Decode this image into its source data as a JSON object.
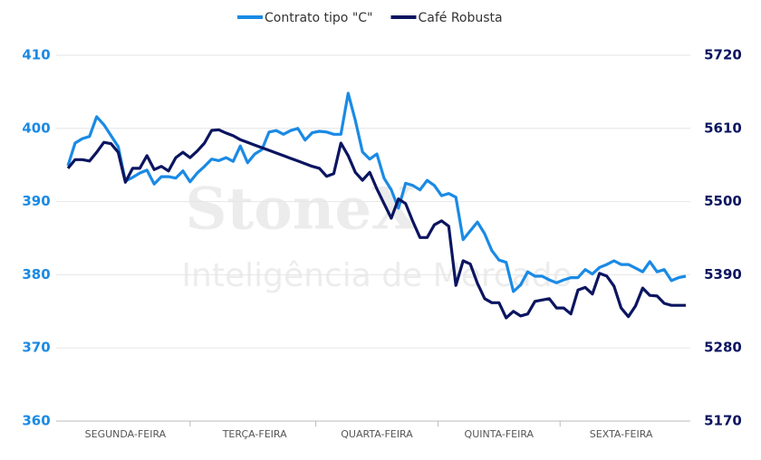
{
  "chart_data": {
    "type": "line",
    "watermark": [
      "StoneX",
      "Inteligência de Mercado"
    ],
    "categories": [
      null,
      null,
      null,
      null,
      null,
      null,
      null,
      null,
      "SEGUNDA-FEIRA",
      null,
      null,
      null,
      null,
      null,
      null,
      null,
      null,
      null,
      null,
      null,
      null,
      null,
      null,
      null,
      null,
      null,
      "TERÇA-FEIRA",
      null,
      null,
      null,
      null,
      null,
      null,
      null,
      null,
      null,
      null,
      null,
      null,
      null,
      null,
      null,
      null,
      "QUARTA-FEIRA",
      null,
      null,
      null,
      null,
      null,
      null,
      null,
      null,
      null,
      null,
      null,
      null,
      null,
      null,
      null,
      null,
      "QUINTA-FEIRA",
      null,
      null,
      null,
      null,
      null,
      null,
      null,
      null,
      null,
      null,
      null,
      null,
      null,
      null,
      null,
      null,
      "SEXTA-FEIRA",
      null,
      null,
      null,
      null,
      null,
      null,
      null,
      null,
      null
    ],
    "series": [
      {
        "name": "Contrato tipo \"C\"",
        "color": "#1a8ae5",
        "axis": "y",
        "values": [
          394.9,
          398,
          398.6,
          398.9,
          401.6,
          400.5,
          399,
          397.5,
          392.8,
          393.3,
          393.9,
          394.3,
          392.4,
          393.4,
          393.4,
          393.2,
          394.2,
          392.7,
          393.9,
          394.8,
          395.8,
          395.6,
          396,
          395.5,
          397.6,
          395.3,
          396.5,
          397.1,
          399.5,
          399.7,
          399.2,
          399.7,
          400,
          398.4,
          399.4,
          399.6,
          399.5,
          399.2,
          399.2,
          404.8,
          401.1,
          396.8,
          395.8,
          396.5,
          393.2,
          391.6,
          389.1,
          392.5,
          392.2,
          391.6,
          392.9,
          392.2,
          390.8,
          391.1,
          390.6,
          384.8,
          386,
          387.2,
          385.6,
          383.3,
          382,
          381.7,
          377.7,
          378.6,
          380.4,
          379.8,
          379.8,
          379.3,
          378.9,
          379.3,
          379.6,
          379.6,
          380.7,
          380.1,
          381,
          381.4,
          381.9,
          381.4,
          381.4,
          380.9,
          380.4,
          381.8,
          380.4,
          380.7,
          379.2,
          379.6,
          379.8
        ]
      },
      {
        "name": "Café Robusta",
        "color": "#0b1560",
        "axis": "y2",
        "values": [
          5550,
          5563,
          5563,
          5561,
          5574,
          5589,
          5587,
          5574,
          5529,
          5550,
          5550,
          5569,
          5548,
          5553,
          5546,
          5566,
          5574,
          5566,
          5576,
          5588,
          5607,
          5608,
          5603,
          5599,
          5593,
          5589,
          5585,
          5581,
          5577,
          5573,
          5569,
          5565,
          5561,
          5557,
          5553,
          5550,
          5538,
          5542,
          5588,
          5569,
          5544,
          5532,
          5544,
          5519,
          5497,
          5475,
          5504,
          5497,
          5470,
          5446,
          5446,
          5465,
          5471,
          5463,
          5374,
          5411,
          5406,
          5377,
          5354,
          5348,
          5348,
          5325,
          5335,
          5328,
          5331,
          5350,
          5352,
          5354,
          5340,
          5340,
          5331,
          5367,
          5371,
          5361,
          5392,
          5388,
          5373,
          5340,
          5327,
          5343,
          5370,
          5359,
          5358,
          5347,
          5344,
          5344,
          5344
        ]
      }
    ],
    "ylim": [
      360,
      410
    ],
    "yticks": [
      360,
      370,
      380,
      390,
      400,
      410
    ],
    "y2lim": [
      5170,
      5720
    ],
    "y2ticks": [
      5170,
      5280,
      5390,
      5500,
      5610,
      5720
    ],
    "grid": true,
    "legend": "top"
  }
}
